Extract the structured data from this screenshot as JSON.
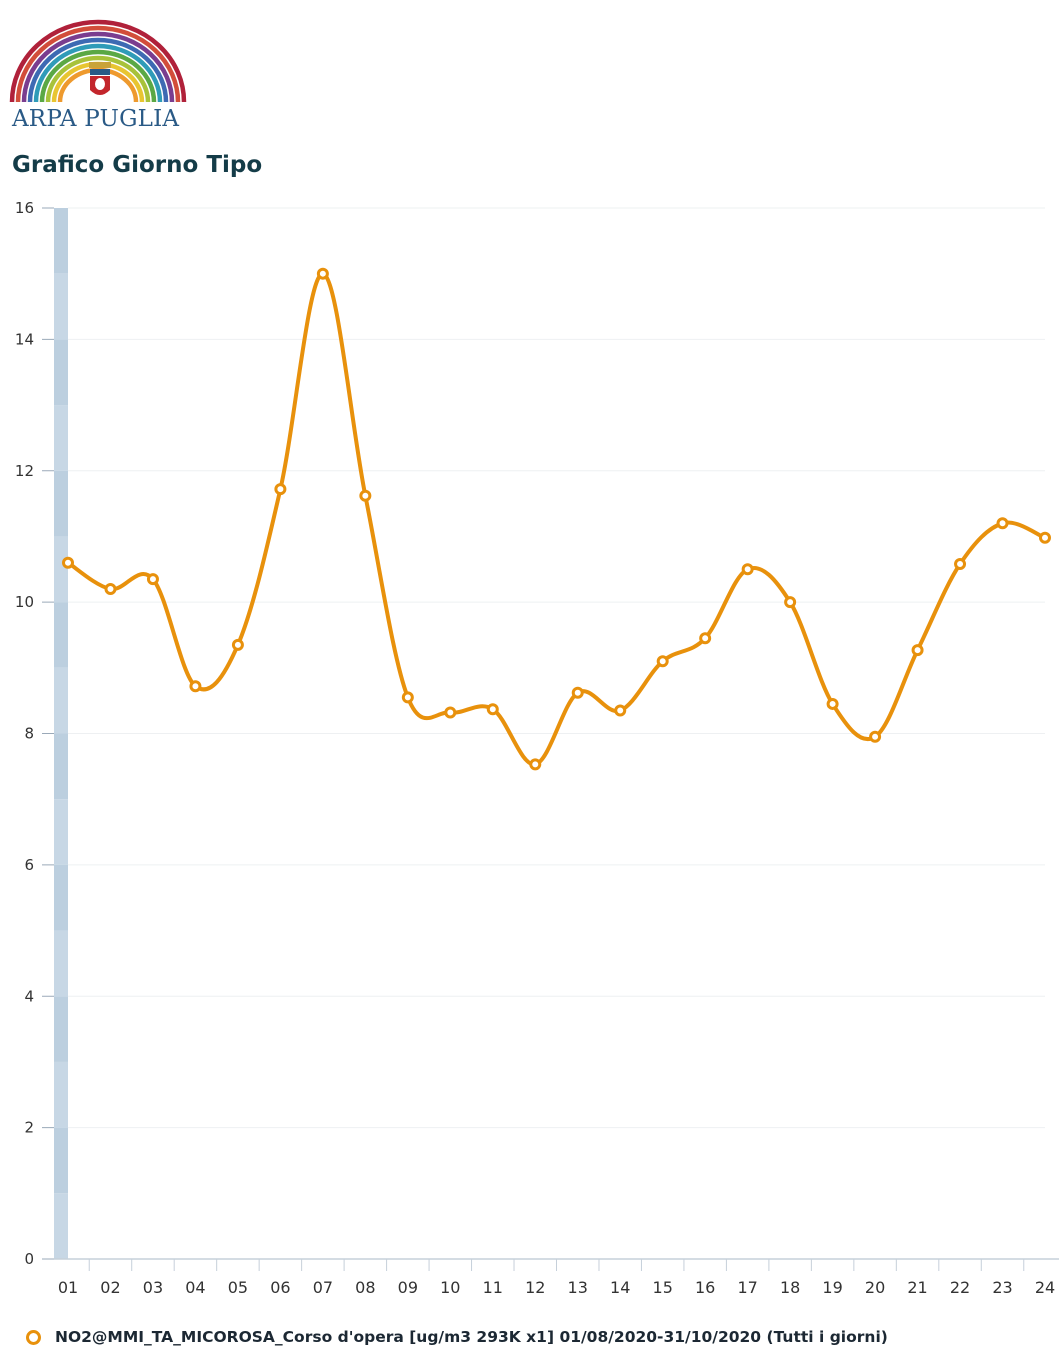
{
  "logo": {
    "text": "ARPA PUGLIA"
  },
  "title": "Grafico Giorno Tipo",
  "colors": {
    "series": "#e8910c",
    "axis_band": "#bccfdf",
    "grid": "#eef0f2",
    "title": "#143c48",
    "logo_text": "#2a5a86"
  },
  "chart_data": {
    "type": "line",
    "categories": [
      "01",
      "02",
      "03",
      "04",
      "05",
      "06",
      "07",
      "08",
      "09",
      "10",
      "11",
      "12",
      "13",
      "14",
      "15",
      "16",
      "17",
      "18",
      "19",
      "20",
      "21",
      "22",
      "23",
      "24"
    ],
    "series": [
      {
        "name": "NO2@MMI_TA_MICOROSA_Corso d'opera [ug/m3 293K x1] 01/08/2020-31/10/2020 (Tutti i giorni)",
        "values": [
          10.6,
          10.2,
          10.35,
          8.72,
          9.35,
          11.72,
          15.0,
          11.62,
          8.55,
          8.32,
          8.37,
          7.53,
          8.62,
          8.35,
          9.1,
          9.45,
          10.5,
          10.0,
          8.45,
          7.95,
          9.27,
          10.58,
          11.2,
          10.98
        ]
      }
    ],
    "ylim": [
      0,
      16
    ],
    "yticks": [
      0,
      2,
      4,
      6,
      8,
      10,
      12,
      14,
      16
    ],
    "grid": true,
    "legend": "bottom",
    "smooth": true,
    "markers": "hollow-circle"
  }
}
